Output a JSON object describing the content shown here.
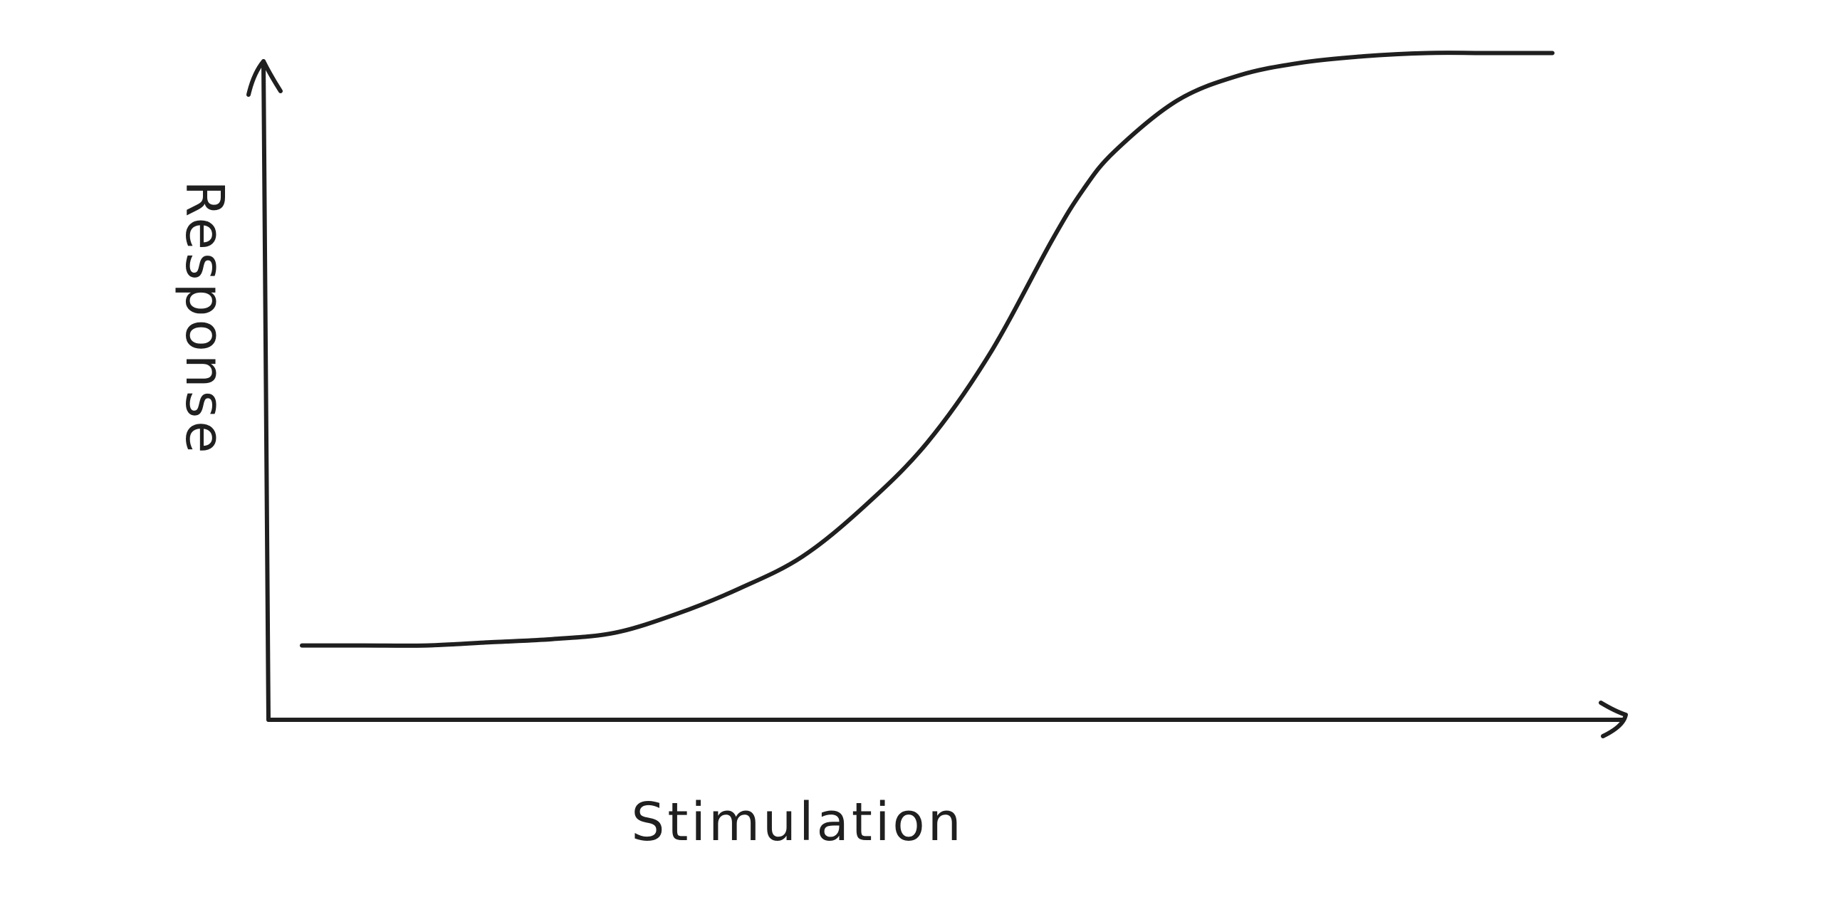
{
  "chart_data": {
    "type": "line",
    "title": "",
    "xlabel": "Stimulation",
    "ylabel": "Response",
    "xlim": [
      0,
      100
    ],
    "ylim": [
      0,
      100
    ],
    "grid": false,
    "legend": "none",
    "tick_labels": false,
    "line_color": "#1f1f1f",
    "series": [
      {
        "x": [
          0,
          5,
          10,
          15,
          20,
          25,
          30,
          35,
          40,
          45,
          50,
          55,
          60,
          62.5,
          65,
          70,
          75,
          80,
          85,
          90,
          95,
          100
        ],
        "values": [
          6,
          6,
          6,
          6.5,
          7,
          8,
          11,
          15,
          20,
          28,
          38,
          52,
          70,
          78,
          84,
          92,
          96,
          98,
          99,
          99.5,
          99.5,
          99.5
        ]
      }
    ]
  }
}
